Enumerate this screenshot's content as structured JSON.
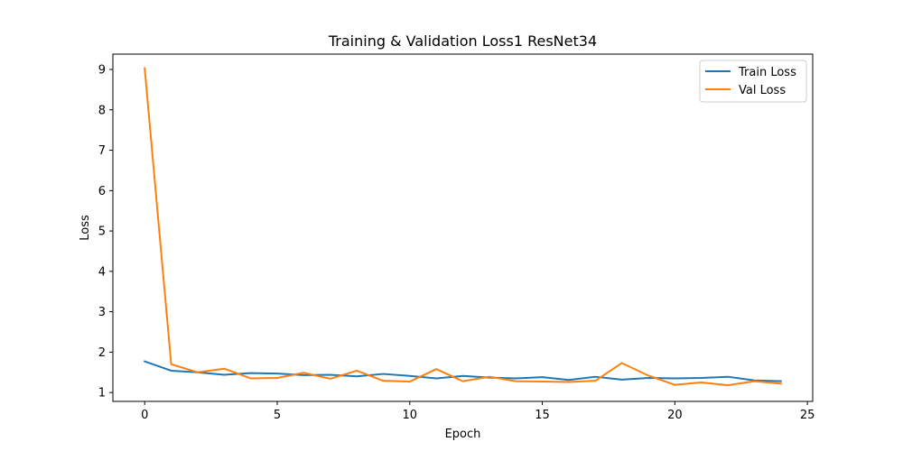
{
  "chart_data": {
    "type": "line",
    "title": "Training & Validation Loss1 ResNet34",
    "xlabel": "Epoch",
    "ylabel": "Loss",
    "xlim": [
      -1.2,
      25.2
    ],
    "ylim": [
      0.78,
      9.38
    ],
    "xticks": [
      0,
      5,
      10,
      15,
      20,
      25
    ],
    "yticks": [
      1,
      2,
      3,
      4,
      5,
      6,
      7,
      8,
      9
    ],
    "grid": false,
    "legend_position": "top-right",
    "x": [
      0,
      1,
      2,
      3,
      4,
      5,
      6,
      7,
      8,
      9,
      10,
      11,
      12,
      13,
      14,
      15,
      16,
      17,
      18,
      19,
      20,
      21,
      22,
      23,
      24
    ],
    "series": [
      {
        "name": "Train Loss",
        "color": "#1f77b4",
        "values": [
          1.77,
          1.54,
          1.5,
          1.44,
          1.48,
          1.47,
          1.43,
          1.44,
          1.4,
          1.46,
          1.41,
          1.35,
          1.41,
          1.37,
          1.35,
          1.38,
          1.31,
          1.39,
          1.32,
          1.36,
          1.35,
          1.36,
          1.39,
          1.3,
          1.28
        ]
      },
      {
        "name": "Val Loss",
        "color": "#ff7f0e",
        "values": [
          9.03,
          1.7,
          1.5,
          1.59,
          1.35,
          1.36,
          1.49,
          1.34,
          1.54,
          1.29,
          1.27,
          1.58,
          1.28,
          1.39,
          1.28,
          1.27,
          1.26,
          1.29,
          1.73,
          1.42,
          1.19,
          1.25,
          1.18,
          1.28,
          1.22
        ]
      }
    ]
  }
}
